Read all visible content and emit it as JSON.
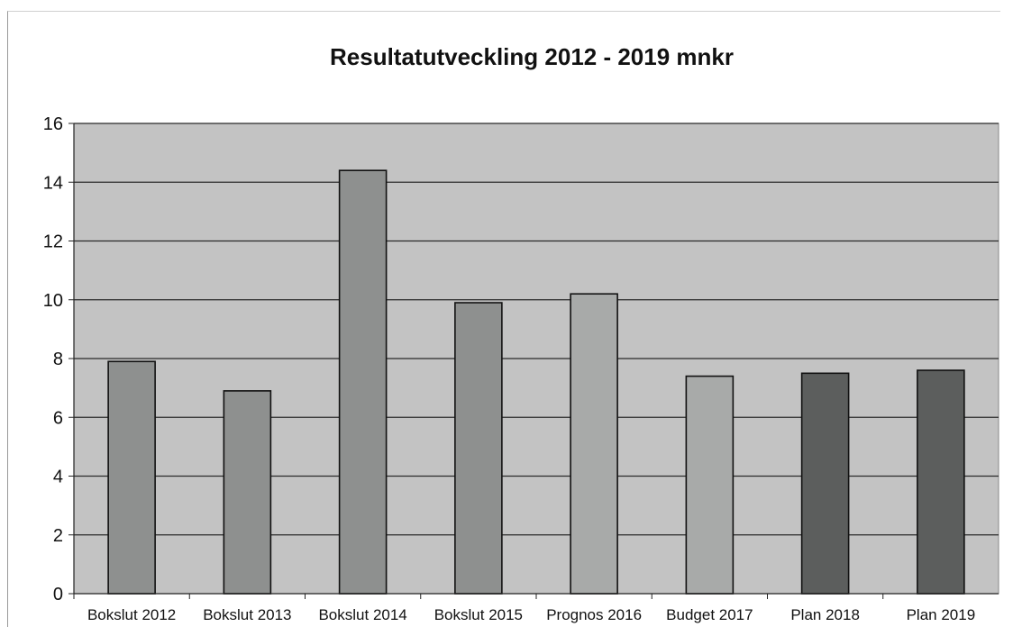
{
  "chart_data": {
    "type": "bar",
    "title": "Resultatutveckling 2012 - 2019 mnkr",
    "xlabel": "",
    "ylabel": "",
    "ylim": [
      0,
      16
    ],
    "yticks": [
      0,
      2,
      4,
      6,
      8,
      10,
      12,
      14,
      16
    ],
    "grid": true,
    "legend": "none",
    "categories": [
      "Bokslut 2012",
      "Bokslut 2013",
      "Bokslut 2014",
      "Bokslut 2015",
      "Prognos 2016",
      "Budget 2017",
      "Plan 2018",
      "Plan 2019"
    ],
    "values": [
      7.9,
      6.9,
      14.4,
      9.9,
      10.2,
      7.4,
      7.5,
      7.6
    ],
    "colors": [
      "#8e908f",
      "#8e908f",
      "#8e908f",
      "#8e908f",
      "#a8aaa9",
      "#a8aaa9",
      "#5c5e5d",
      "#5c5e5d"
    ],
    "plot_background": "#c3c3c3"
  }
}
